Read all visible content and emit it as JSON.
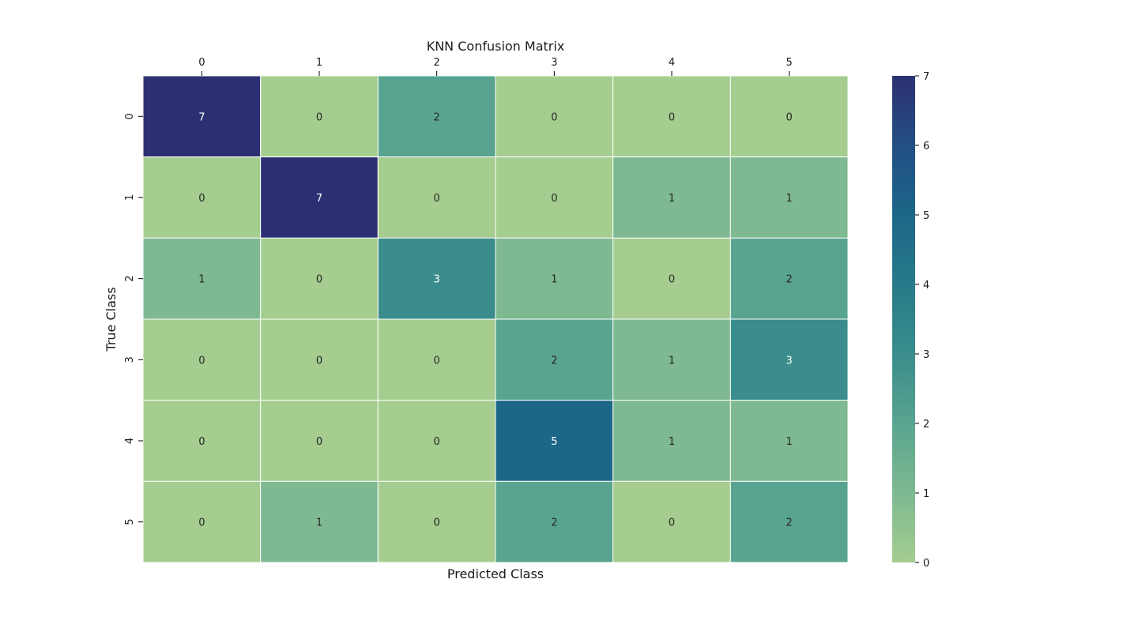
{
  "chart_data": {
    "type": "heatmap",
    "title": "KNN Confusion Matrix",
    "xlabel": "Predicted Class",
    "ylabel": "True Class",
    "x_ticks": [
      "0",
      "1",
      "2",
      "3",
      "4",
      "5"
    ],
    "y_ticks": [
      "0",
      "1",
      "2",
      "3",
      "4",
      "5"
    ],
    "matrix": [
      [
        7,
        0,
        2,
        0,
        0,
        0
      ],
      [
        0,
        7,
        0,
        0,
        1,
        1
      ],
      [
        1,
        0,
        3,
        1,
        0,
        2
      ],
      [
        0,
        0,
        0,
        2,
        1,
        3
      ],
      [
        0,
        0,
        0,
        5,
        1,
        1
      ],
      [
        0,
        1,
        0,
        2,
        0,
        2
      ]
    ],
    "value_range": [
      0,
      7
    ],
    "colorbar_ticks": [
      "0",
      "1",
      "2",
      "3",
      "4",
      "5",
      "6",
      "7"
    ],
    "colormap": [
      "#a4cd8f",
      "#7eb991",
      "#59a490",
      "#3a8d8c",
      "#277a89",
      "#1c6688",
      "#224f84",
      "#2c3072"
    ]
  }
}
